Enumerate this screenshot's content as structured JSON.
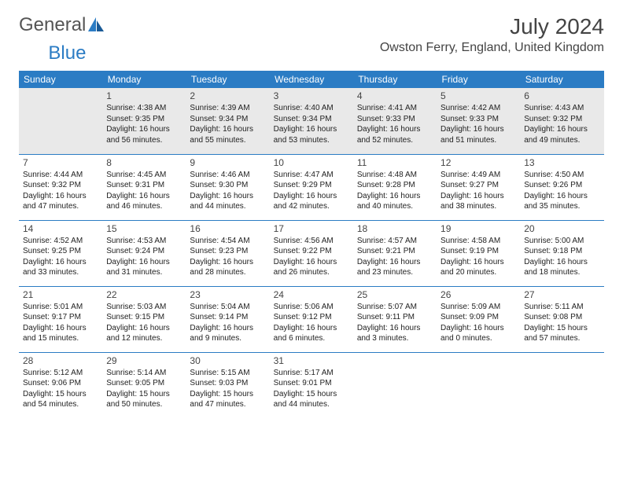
{
  "logo": {
    "text1": "General",
    "text2": "Blue"
  },
  "title": "July 2024",
  "location": "Owston Ferry, England, United Kingdom",
  "colors": {
    "header_bg": "#2b7cc4",
    "header_fg": "#ffffff",
    "row1_bg": "#e9e9e9",
    "divider": "#2b7cc4"
  },
  "fonts": {
    "title_size": 28,
    "location_size": 16,
    "dayname_size": 12,
    "cell_size": 10,
    "daynum_size": 12
  },
  "day_names": [
    "Sunday",
    "Monday",
    "Tuesday",
    "Wednesday",
    "Thursday",
    "Friday",
    "Saturday"
  ],
  "weeks": [
    [
      null,
      {
        "n": "1",
        "sr": "4:38 AM",
        "ss": "9:35 PM",
        "dl": "16 hours and 56 minutes."
      },
      {
        "n": "2",
        "sr": "4:39 AM",
        "ss": "9:34 PM",
        "dl": "16 hours and 55 minutes."
      },
      {
        "n": "3",
        "sr": "4:40 AM",
        "ss": "9:34 PM",
        "dl": "16 hours and 53 minutes."
      },
      {
        "n": "4",
        "sr": "4:41 AM",
        "ss": "9:33 PM",
        "dl": "16 hours and 52 minutes."
      },
      {
        "n": "5",
        "sr": "4:42 AM",
        "ss": "9:33 PM",
        "dl": "16 hours and 51 minutes."
      },
      {
        "n": "6",
        "sr": "4:43 AM",
        "ss": "9:32 PM",
        "dl": "16 hours and 49 minutes."
      }
    ],
    [
      {
        "n": "7",
        "sr": "4:44 AM",
        "ss": "9:32 PM",
        "dl": "16 hours and 47 minutes."
      },
      {
        "n": "8",
        "sr": "4:45 AM",
        "ss": "9:31 PM",
        "dl": "16 hours and 46 minutes."
      },
      {
        "n": "9",
        "sr": "4:46 AM",
        "ss": "9:30 PM",
        "dl": "16 hours and 44 minutes."
      },
      {
        "n": "10",
        "sr": "4:47 AM",
        "ss": "9:29 PM",
        "dl": "16 hours and 42 minutes."
      },
      {
        "n": "11",
        "sr": "4:48 AM",
        "ss": "9:28 PM",
        "dl": "16 hours and 40 minutes."
      },
      {
        "n": "12",
        "sr": "4:49 AM",
        "ss": "9:27 PM",
        "dl": "16 hours and 38 minutes."
      },
      {
        "n": "13",
        "sr": "4:50 AM",
        "ss": "9:26 PM",
        "dl": "16 hours and 35 minutes."
      }
    ],
    [
      {
        "n": "14",
        "sr": "4:52 AM",
        "ss": "9:25 PM",
        "dl": "16 hours and 33 minutes."
      },
      {
        "n": "15",
        "sr": "4:53 AM",
        "ss": "9:24 PM",
        "dl": "16 hours and 31 minutes."
      },
      {
        "n": "16",
        "sr": "4:54 AM",
        "ss": "9:23 PM",
        "dl": "16 hours and 28 minutes."
      },
      {
        "n": "17",
        "sr": "4:56 AM",
        "ss": "9:22 PM",
        "dl": "16 hours and 26 minutes."
      },
      {
        "n": "18",
        "sr": "4:57 AM",
        "ss": "9:21 PM",
        "dl": "16 hours and 23 minutes."
      },
      {
        "n": "19",
        "sr": "4:58 AM",
        "ss": "9:19 PM",
        "dl": "16 hours and 20 minutes."
      },
      {
        "n": "20",
        "sr": "5:00 AM",
        "ss": "9:18 PM",
        "dl": "16 hours and 18 minutes."
      }
    ],
    [
      {
        "n": "21",
        "sr": "5:01 AM",
        "ss": "9:17 PM",
        "dl": "16 hours and 15 minutes."
      },
      {
        "n": "22",
        "sr": "5:03 AM",
        "ss": "9:15 PM",
        "dl": "16 hours and 12 minutes."
      },
      {
        "n": "23",
        "sr": "5:04 AM",
        "ss": "9:14 PM",
        "dl": "16 hours and 9 minutes."
      },
      {
        "n": "24",
        "sr": "5:06 AM",
        "ss": "9:12 PM",
        "dl": "16 hours and 6 minutes."
      },
      {
        "n": "25",
        "sr": "5:07 AM",
        "ss": "9:11 PM",
        "dl": "16 hours and 3 minutes."
      },
      {
        "n": "26",
        "sr": "5:09 AM",
        "ss": "9:09 PM",
        "dl": "16 hours and 0 minutes."
      },
      {
        "n": "27",
        "sr": "5:11 AM",
        "ss": "9:08 PM",
        "dl": "15 hours and 57 minutes."
      }
    ],
    [
      {
        "n": "28",
        "sr": "5:12 AM",
        "ss": "9:06 PM",
        "dl": "15 hours and 54 minutes."
      },
      {
        "n": "29",
        "sr": "5:14 AM",
        "ss": "9:05 PM",
        "dl": "15 hours and 50 minutes."
      },
      {
        "n": "30",
        "sr": "5:15 AM",
        "ss": "9:03 PM",
        "dl": "15 hours and 47 minutes."
      },
      {
        "n": "31",
        "sr": "5:17 AM",
        "ss": "9:01 PM",
        "dl": "15 hours and 44 minutes."
      },
      null,
      null,
      null
    ]
  ],
  "labels": {
    "sunrise": "Sunrise:",
    "sunset": "Sunset:",
    "daylight": "Daylight:"
  }
}
